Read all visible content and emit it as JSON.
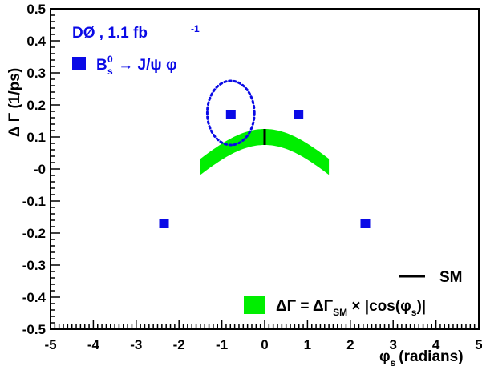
{
  "chart_data": {
    "type": "scatter",
    "experiment": "DØ , 1.1 fb",
    "experiment_sup": "-1",
    "xlabel_symbol": "φ",
    "xlabel_sub": "s",
    "xlabel_unit": "(radians)",
    "ylabel": "Δ Γ (1/ps)",
    "xlim": [
      -5,
      5
    ],
    "ylim": [
      -0.5,
      0.5
    ],
    "x_ticks": [
      -5,
      -4,
      -3,
      -2,
      -1,
      0,
      1,
      2,
      3,
      4,
      5
    ],
    "x_tick_labels": [
      "-5",
      "-4",
      "-3",
      "-2",
      "-1",
      "0",
      "1",
      "2",
      "3",
      "4",
      "5"
    ],
    "y_ticks": [
      0.5,
      0.4,
      0.3,
      0.2,
      0.1,
      0,
      -0.1,
      -0.2,
      -0.3,
      -0.4,
      -0.5
    ],
    "y_tick_labels": [
      "0.5",
      "0.4",
      "0.3",
      "0.2",
      "0.1",
      "-0",
      "-0.1",
      "-0.2",
      "-0.3",
      "-0.4",
      "-0.5"
    ],
    "series": [
      {
        "name": "B_s^0 → J/ψ φ",
        "color": "#0a0ae6",
        "marker": "square",
        "points": [
          [
            -0.79,
            0.17
          ],
          [
            0.79,
            0.17
          ],
          [
            -2.35,
            -0.17
          ],
          [
            2.35,
            -0.17
          ]
        ]
      }
    ],
    "contour": {
      "style": "dotted",
      "color": "#0a0ae6",
      "center": [
        -0.79,
        0.175
      ],
      "half_width": 0.55,
      "half_height": 0.1
    },
    "band": {
      "color": "#00ee00",
      "x_range": [
        -1.5,
        1.5
      ],
      "center_value": 0.1,
      "half_width": 0.025
    },
    "sm_marker": {
      "x": 0,
      "y_range": [
        0.075,
        0.125
      ],
      "color": "#000000"
    },
    "legend": {
      "series_label_main": "B",
      "series_label_sub": "s",
      "series_label_sup": "0",
      "series_label_rest": " → J/ψ φ",
      "sm_label": "SM",
      "band_label_lhs": "ΔΓ = ΔΓ",
      "band_label_sub": "SM",
      "band_label_rhs": " × |cos(φ",
      "band_label_sub2": "s",
      "band_label_end": ")|"
    }
  }
}
